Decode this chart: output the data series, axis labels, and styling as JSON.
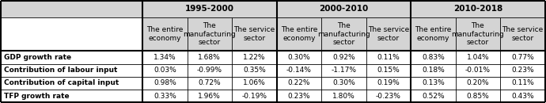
{
  "period_headers": [
    "1995-2000",
    "2000-2010",
    "2010-2018"
  ],
  "sub_headers": [
    "The entire\neconomy",
    "The\nmanufacturing\nsector",
    "The service\nsector"
  ],
  "row_labels": [
    "GDP growth rate",
    "Contribution of labour input",
    "Contribution of capital input",
    "TFP growth rate"
  ],
  "data": [
    [
      "1.34%",
      "1.68%",
      "1.22%",
      "0.30%",
      "0.92%",
      "0.11%",
      "0.83%",
      "1.04%",
      "0.77%"
    ],
    [
      "0.03%",
      "-0.99%",
      "0.35%",
      "-0.14%",
      "-1.17%",
      "0.15%",
      "0.18%",
      "-0.01%",
      "0.23%"
    ],
    [
      "0.98%",
      "0.72%",
      "1.06%",
      "0.22%",
      "0.30%",
      "0.19%",
      "0.13%",
      "0.20%",
      "0.11%"
    ],
    [
      "0.33%",
      "1.96%",
      "-0.19%",
      "0.23%",
      "1.80%",
      "-0.23%",
      "0.52%",
      "0.85%",
      "0.43%"
    ]
  ],
  "bg_header": "#d4d4d4",
  "bg_white": "#ffffff",
  "border_color": "#000000",
  "text_color": "#000000",
  "font_size": 6.5,
  "header_font_size": 7.5,
  "row_label_fontsize": 6.5,
  "figwidth": 6.9,
  "figheight": 1.3,
  "dpi": 100
}
